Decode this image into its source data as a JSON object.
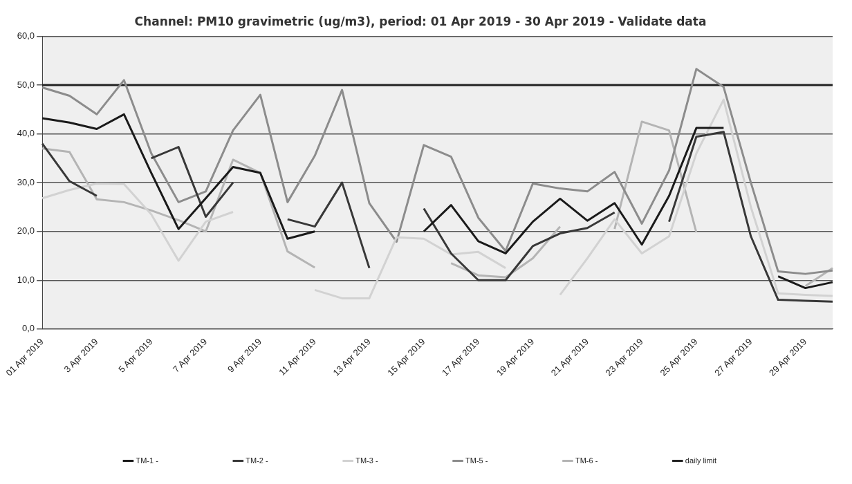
{
  "chart_data": {
    "type": "line",
    "title": "Channel: PM10 gravimetric (ug/m3), period: 01 Apr 2019 - 30 Apr 2019 - Validate data",
    "categories": [
      "01 Apr 2019",
      null,
      "3 Apr 2019",
      null,
      "5 Apr 2019",
      null,
      "7 Apr 2019",
      null,
      "9 Apr 2019",
      null,
      "11 Apr 2019",
      null,
      "13 Apr 2019",
      null,
      "15 Apr 2019",
      null,
      "17 Apr 2019",
      null,
      "19 Apr 2019",
      null,
      "21 Apr 2019",
      null,
      "23 Apr 2019",
      null,
      "25 Apr 2019",
      null,
      "27 Apr 2019",
      null,
      "29 Apr 2019",
      null
    ],
    "series": [
      {
        "name": "TM-1 -",
        "color": "#1a1a1a",
        "values": [
          43.2,
          42.3,
          41,
          44,
          32,
          20.5,
          26.8,
          33.2,
          32,
          18.5,
          20,
          null,
          null,
          null,
          20,
          25.4,
          18,
          15.5,
          22,
          26.7,
          22.2,
          25.8,
          17.3,
          27.3,
          41.2,
          41.2,
          null,
          10.8,
          8.4,
          9.6
        ]
      },
      {
        "name": "TM-2 -",
        "color": "#383838",
        "values": [
          38,
          30.3,
          27.3,
          null,
          35,
          37.3,
          23,
          30,
          null,
          22.5,
          21,
          30,
          12.5,
          null,
          24.7,
          15.5,
          10,
          10,
          17,
          19.6,
          20.7,
          23.9,
          null,
          22,
          39.4,
          40.4,
          19,
          6,
          5.8,
          5.6
        ]
      },
      {
        "name": "TM-3 -",
        "color": "#d2d2d2",
        "values": [
          26.8,
          28.5,
          29.8,
          29.7,
          23.5,
          14,
          22,
          24,
          null,
          null,
          8,
          6.3,
          6.3,
          18.8,
          18.5,
          15.3,
          15.8,
          12.5,
          null,
          7,
          14.5,
          22.5,
          15.5,
          19,
          36,
          47,
          25,
          7.3,
          7,
          6.8
        ]
      },
      {
        "name": "TM-5 -",
        "color": "#8c8c8c",
        "values": [
          49.5,
          47.8,
          44,
          51,
          36,
          26,
          28.2,
          40.7,
          48,
          26,
          35.5,
          49,
          25.8,
          17.9,
          37.7,
          35.3,
          22.8,
          16,
          29.8,
          28.8,
          28.2,
          32.2,
          21.6,
          32.5,
          53.3,
          49.6,
          30,
          11.8,
          11.3,
          12
        ]
      },
      {
        "name": "TM-6 -",
        "color": "#b4b4b4",
        "values": [
          37,
          36.3,
          26.6,
          26,
          24.3,
          22.3,
          20,
          34.7,
          32,
          15.9,
          12.6,
          null,
          null,
          null,
          null,
          13.5,
          11,
          10.6,
          14.5,
          21,
          null,
          20.5,
          42.5,
          40.7,
          19.8,
          null,
          null,
          null,
          8.8,
          12.5
        ]
      },
      {
        "name": "daily limit",
        "color": "#222222",
        "values": [
          50,
          50,
          50,
          50,
          50,
          50,
          50,
          50,
          50,
          50,
          50,
          50,
          50,
          50,
          50,
          50,
          50,
          50,
          50,
          50,
          50,
          50,
          50,
          50,
          50,
          50,
          50,
          50,
          50,
          50
        ]
      }
    ],
    "ylim": [
      0,
      60
    ],
    "yticks": [
      {
        "value": 0,
        "label": "0,0"
      },
      {
        "value": 10,
        "label": "10,0"
      },
      {
        "value": 20,
        "label": "20,0"
      },
      {
        "value": 30,
        "label": "30,0"
      },
      {
        "value": 40,
        "label": "40,0"
      },
      {
        "value": 50,
        "label": "50,0"
      },
      {
        "value": 60,
        "label": "60,0"
      }
    ],
    "grid": "y",
    "legend": "bottom",
    "marker": "none",
    "line_style": "solid"
  }
}
